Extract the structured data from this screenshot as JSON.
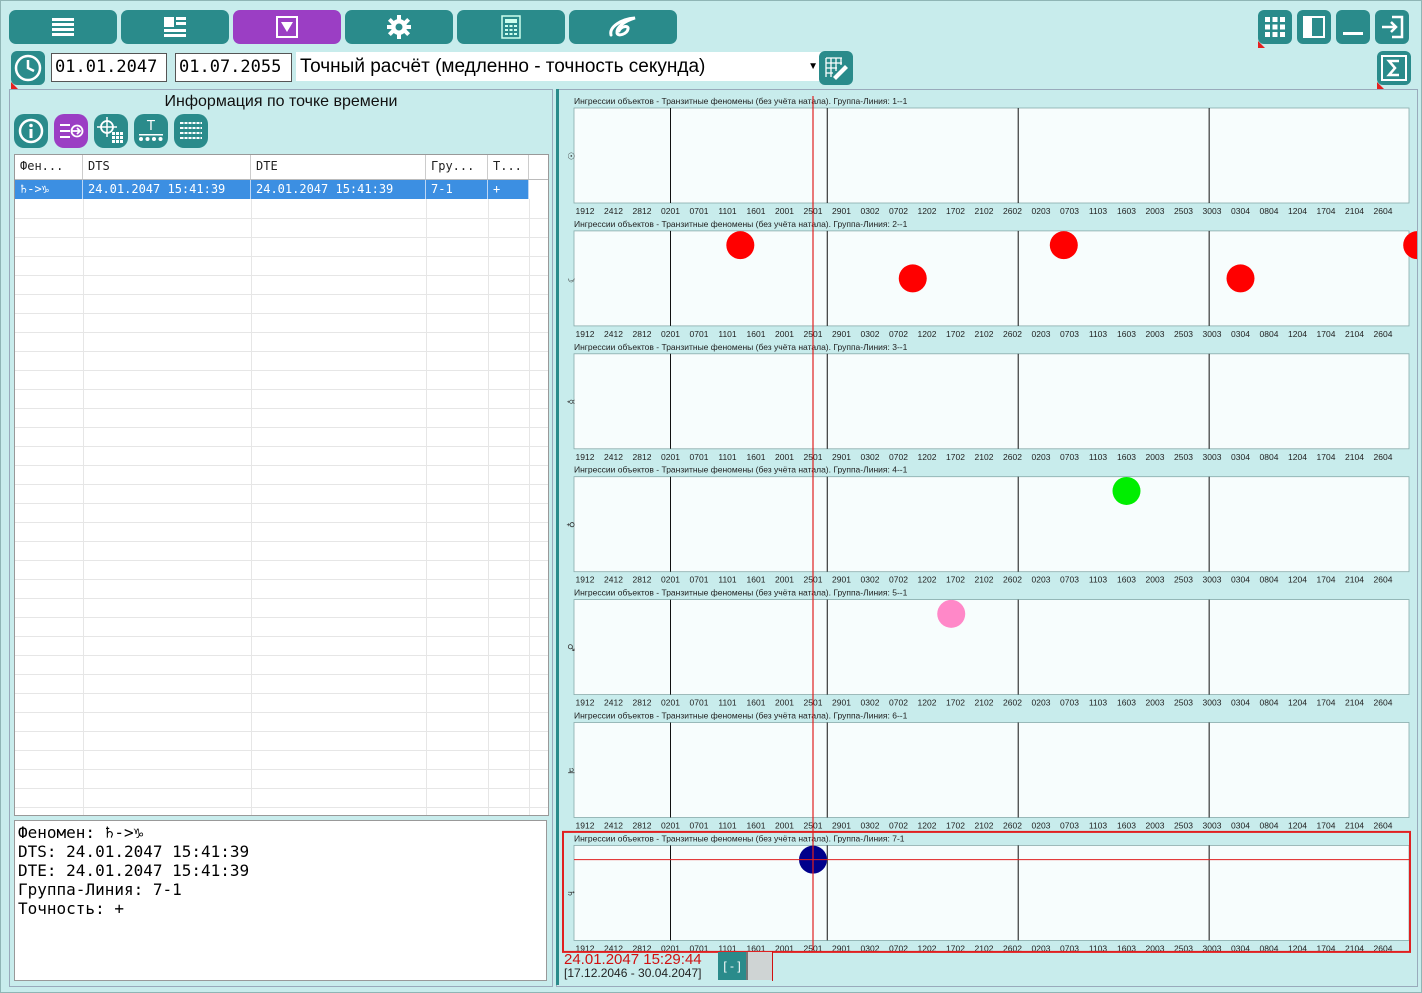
{
  "top_nav": {
    "buttons": [
      "menu-icon",
      "layout-icon",
      "filter-icon",
      "gear-icon",
      "calculator-icon",
      "logo-icon"
    ],
    "active_index": 2,
    "right_buttons": [
      "grid-icon",
      "panel-icon",
      "minimize-icon",
      "exit-icon"
    ]
  },
  "toolbar": {
    "date_from": "01.01.2047",
    "date_to": "01.07.2055",
    "mode": "Точный расчёт (медленно - точность секунда)"
  },
  "left_panel": {
    "title": "Информация по точке времени",
    "grid": {
      "headers": [
        "Фен...",
        "DTS",
        "DTE",
        "Гру...",
        "Т..."
      ],
      "rows": [
        [
          "♄->♑",
          "24.01.2047 15:41:39",
          "24.01.2047 15:41:39",
          "7-1",
          "+"
        ]
      ]
    },
    "info_lines": [
      "Феномен: ♄->♑",
      "DTS: 24.01.2047 15:41:39",
      "DTE: 24.01.2047 15:41:39",
      "Группа-Линия: 7-1",
      "Точность: +"
    ]
  },
  "chart_data": {
    "type": "scatter",
    "x_ticks": [
      "1912",
      "2412",
      "2812",
      "0201",
      "0701",
      "1101",
      "1601",
      "2001",
      "2501",
      "2901",
      "0302",
      "0702",
      "1202",
      "1702",
      "2102",
      "2602",
      "0203",
      "0703",
      "1103",
      "1603",
      "2003",
      "2503",
      "3003",
      "0304",
      "0804",
      "1204",
      "1704",
      "2104",
      "2604"
    ],
    "cursor_x": "2501",
    "selected_panel": 7,
    "panels": [
      {
        "title": "Ингрессии объектов - Транзитные феномены (без учёта натала). Группа-Линия: 1--1",
        "symbol": "☉",
        "points": []
      },
      {
        "title": "Ингрессии объектов - Транзитные феномены (без учёта натала). Группа-Линия: 2--1",
        "symbol": "☽",
        "points": [
          {
            "x": 5.45,
            "y": 0.15,
            "color": "#ff0000"
          },
          {
            "x": 11.5,
            "y": 0.5,
            "color": "#ff0000"
          },
          {
            "x": 16.8,
            "y": 0.15,
            "color": "#ff0000"
          },
          {
            "x": 23.0,
            "y": 0.5,
            "color": "#ff0000"
          },
          {
            "x": 29.2,
            "y": 0.15,
            "color": "#ff0000"
          }
        ]
      },
      {
        "title": "Ингрессии объектов - Транзитные феномены (без учёта натала). Группа-Линия: 3--1",
        "symbol": "☿",
        "points": []
      },
      {
        "title": "Ингрессии объектов - Транзитные феномены (без учёта натала). Группа-Линия: 4--1",
        "symbol": "♀",
        "points": [
          {
            "x": 19.0,
            "y": 0.15,
            "color": "#00ee00"
          }
        ]
      },
      {
        "title": "Ингрессии объектов - Транзитные феномены (без учёта натала). Группа-Линия: 5--1",
        "symbol": "♂",
        "points": [
          {
            "x": 12.85,
            "y": 0.15,
            "color": "#ff88c8"
          }
        ]
      },
      {
        "title": "Ингрессии объектов - Транзитные феномены (без учёта натала). Группа-Линия: 6--1",
        "symbol": "♃",
        "points": []
      },
      {
        "title": "Ингрессии объектов - Транзитные феномены (без учёта натала). Группа-Линия: 7-1",
        "symbol": "♄",
        "points": [
          {
            "x": 8.0,
            "y": 0.15,
            "color": "#00008b"
          }
        ]
      }
    ]
  },
  "status": {
    "current_time": "24.01.2047 15:29:44",
    "range": "[17.12.2046 - 30.04.2047]",
    "toggle_label": "[ - ]"
  }
}
